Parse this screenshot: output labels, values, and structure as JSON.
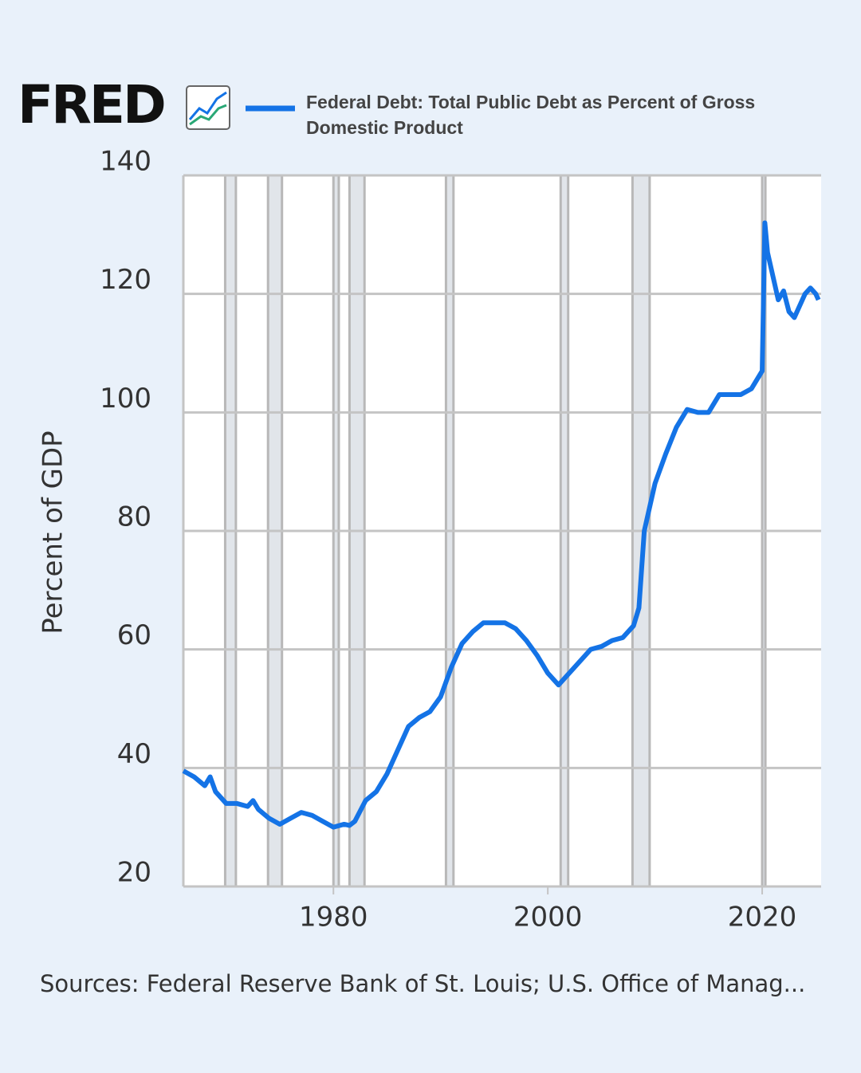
{
  "chart_data": {
    "type": "line",
    "logo": "FRED",
    "y_axis_label": "Percent of GDP",
    "source": "Sources: Federal Reserve Bank of St. Louis; U.S. Office of Manag...",
    "x": [
      1966,
      1967,
      1968,
      1968.5,
      1969,
      1970,
      1971,
      1972,
      1972.5,
      1973,
      1974,
      1975,
      1976,
      1977,
      1978,
      1979,
      1980,
      1981,
      1981.5,
      1982,
      1983,
      1984,
      1985,
      1986,
      1987,
      1988,
      1989,
      1990,
      1991,
      1992,
      1993,
      1994,
      1995,
      1996,
      1997,
      1998,
      1999,
      2000,
      2001,
      2002,
      2003,
      2004,
      2005,
      2006,
      2007,
      2008,
      2008.5,
      2009,
      2010,
      2011,
      2012,
      2013,
      2014,
      2015,
      2016,
      2017,
      2018,
      2019,
      2020,
      2020.25,
      2020.5,
      2021,
      2021.5,
      2022,
      2022.5,
      2023,
      2023.5,
      2024,
      2024.5,
      2025,
      2025.25
    ],
    "series": [
      {
        "name": "Federal Debt: Total Public Debt as Percent of Gross Domestic Product",
        "color": "#1473e6",
        "values": [
          39.5,
          38.5,
          37,
          38.5,
          36,
          34,
          34,
          33.5,
          34.5,
          33,
          31.5,
          30.5,
          31.5,
          32.5,
          32,
          31,
          30,
          30.5,
          30.3,
          31,
          34.5,
          36,
          39,
          43,
          47,
          48.5,
          49.5,
          52,
          57,
          61,
          63,
          64.5,
          64.5,
          64.5,
          63.5,
          61.5,
          59,
          56,
          54,
          56,
          58,
          60,
          60.5,
          61.5,
          62,
          64,
          67,
          80,
          88,
          93,
          97.5,
          100.5,
          100,
          100,
          103,
          103,
          103,
          104,
          107,
          132,
          127,
          123,
          119,
          120.5,
          117,
          116,
          118,
          120,
          121,
          120,
          119
        ]
      }
    ],
    "recessions": [
      [
        1969.9,
        1970.9
      ],
      [
        1973.9,
        1975.2
      ],
      [
        1980.0,
        1980.5
      ],
      [
        1981.5,
        1982.9
      ],
      [
        1990.5,
        1991.2
      ],
      [
        2001.2,
        2001.9
      ],
      [
        2007.9,
        2009.5
      ],
      [
        2020.0,
        2020.3
      ]
    ],
    "xlim": [
      1966,
      2025.5
    ],
    "xticks": [
      1980,
      2000,
      2020
    ],
    "ylim": [
      20,
      140
    ],
    "yticks": [
      20,
      40,
      60,
      80,
      100,
      120,
      140
    ],
    "grid": true
  }
}
